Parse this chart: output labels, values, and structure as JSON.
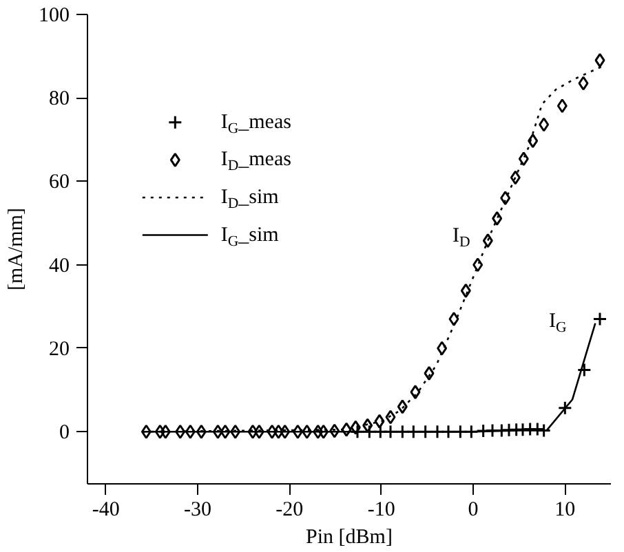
{
  "chart_data": {
    "type": "scatter",
    "xlabel": "Pin [dBm]",
    "ylabel": "[mA/mm]",
    "xlim": [
      -42,
      15
    ],
    "ylim": [
      -12.5,
      100
    ],
    "xticks": [
      -40,
      -30,
      -20,
      -10,
      0,
      10
    ],
    "yticks": [
      0,
      20,
      40,
      60,
      80,
      100
    ],
    "grid": false,
    "legend": "top left",
    "annotations": [
      "I$_{D}$",
      "I$_{G}$"
    ],
    "series": [
      {
        "name": "I$_{G}$_meas",
        "marker": "cross",
        "color": "#000000",
        "x": [
          -12.6,
          -11.3,
          -10.1,
          -9.0,
          -7.7,
          -6.5,
          -5.2,
          -3.9,
          -2.7,
          -1.4,
          -0.2,
          1.1,
          2.1,
          3.1,
          3.9,
          4.7,
          5.4,
          6.2,
          7.0,
          7.7,
          10.0,
          12.1,
          13.8
        ],
        "values": [
          0,
          0,
          0,
          0,
          0,
          0,
          0,
          0,
          0,
          0,
          0,
          0.2,
          0.3,
          0.3,
          0.4,
          0.5,
          0.5,
          0.6,
          0.6,
          0.3,
          5.7,
          14.8,
          27
        ]
      },
      {
        "name": "I$_{D}$_meas",
        "marker": "diamond",
        "color": "#000000",
        "x": [
          -35.6,
          -34.1,
          -33.5,
          -31.9,
          -30.8,
          -29.6,
          -27.8,
          -27.0,
          -25.9,
          -24.0,
          -23.3,
          -21.9,
          -21.2,
          -20.5,
          -19.1,
          -18.1,
          -16.9,
          -16.3,
          -15.1,
          -13.8,
          -12.8,
          -11.5,
          -10.2,
          -9.0,
          -7.7,
          -6.3,
          -4.8,
          -3.4,
          -2.1,
          -0.8,
          0.5,
          1.6,
          2.6,
          3.5,
          4.6,
          5.5,
          6.5,
          7.7,
          9.7,
          12.0,
          13.8
        ],
        "values": [
          0,
          0,
          0,
          0,
          0,
          0,
          0,
          0,
          0,
          0,
          0,
          0,
          0,
          0,
          0,
          0,
          0,
          0,
          0.2,
          0.5,
          1,
          1.5,
          2.5,
          3.5,
          6,
          9.5,
          14,
          20,
          27,
          33.8,
          40,
          45.8,
          51.1,
          56,
          60.9,
          65.4,
          69.7,
          73.6,
          78.1,
          83.5,
          89
        ]
      },
      {
        "name": "I$_{D}$_sim",
        "type": "line",
        "line_style": "dotted",
        "marker": "none",
        "color": "#000000",
        "x": [
          -36,
          -14,
          -10,
          -8,
          -6,
          -4,
          -2,
          0,
          2,
          4,
          6,
          7.5,
          9,
          11,
          14
        ],
        "values": [
          0,
          0.5,
          2.5,
          5,
          9.5,
          16,
          26,
          37,
          48,
          58,
          68,
          78.5,
          82,
          84.5,
          87.5
        ]
      },
      {
        "name": "I$_{G}$_sim",
        "type": "line",
        "line_style": "solid",
        "marker": "none",
        "color": "#000000",
        "x": [
          -36,
          -12,
          0,
          5,
          8,
          10.8,
          13.3
        ],
        "values": [
          0,
          0,
          0,
          0.3,
          0.3,
          7.7,
          26
        ]
      }
    ]
  }
}
